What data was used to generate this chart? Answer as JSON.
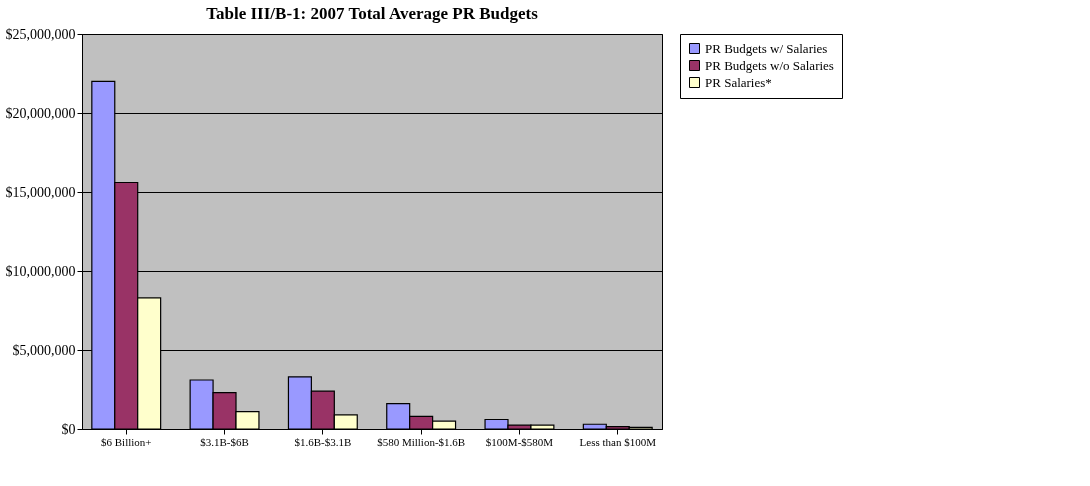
{
  "chart_data": {
    "type": "bar",
    "title": "Table III/B-1: 2007 Total Average PR Budgets",
    "categories": [
      "$6 Billion+",
      "$3.1B-$6B",
      "$1.6B-$3.1B",
      "$580 Million-$1.6B",
      "$100M-$580M",
      "Less than $100M"
    ],
    "series": [
      {
        "name": "PR Budgets w/ Salaries",
        "color": "#9999ff",
        "values": [
          22000000,
          3100000,
          3300000,
          1600000,
          600000,
          300000
        ]
      },
      {
        "name": "PR Budgets w/o Salaries",
        "color": "#993366",
        "values": [
          15600000,
          2300000,
          2400000,
          800000,
          250000,
          150000
        ]
      },
      {
        "name": "PR Salaries*",
        "color": "#ffffcc",
        "values": [
          8300000,
          1100000,
          900000,
          500000,
          250000,
          100000
        ]
      }
    ],
    "ylim": [
      0,
      25000000
    ],
    "yticks": [
      {
        "value": 0,
        "label": "$0"
      },
      {
        "value": 5000000,
        "label": "$5,000,000"
      },
      {
        "value": 10000000,
        "label": "$10,000,000"
      },
      {
        "value": 15000000,
        "label": "$15,000,000"
      },
      {
        "value": 20000000,
        "label": "$20,000,000"
      },
      {
        "value": 25000000,
        "label": "$25,000,000"
      }
    ],
    "grid": "y",
    "legend": "right"
  }
}
